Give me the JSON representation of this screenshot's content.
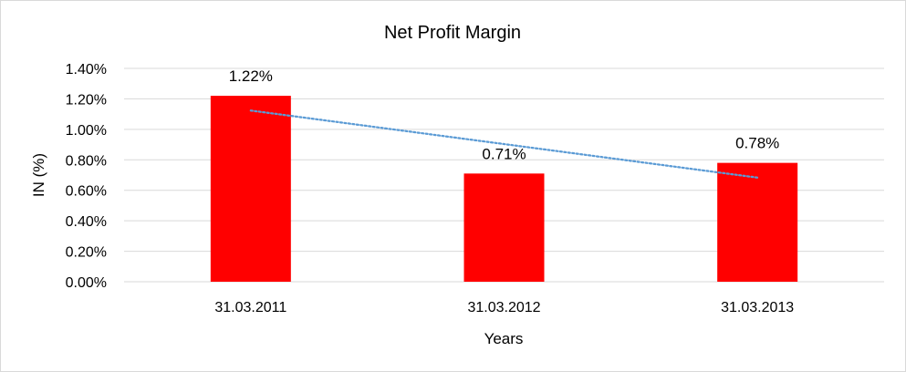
{
  "chart_data": {
    "type": "bar",
    "title": "Net Profit Margin",
    "xlabel": "Years",
    "ylabel": "IN (%)",
    "categories": [
      "31.03.2011",
      "31.03.2012",
      "31.03.2013"
    ],
    "values": [
      1.22,
      0.71,
      0.78
    ],
    "data_labels": [
      "1.22%",
      "0.71%",
      "0.78%"
    ],
    "ylim": [
      0,
      1.4
    ],
    "y_ticks": [
      0,
      0.2,
      0.4,
      0.6,
      0.8,
      1.0,
      1.2,
      1.4
    ],
    "y_tick_labels": [
      "0.00%",
      "0.20%",
      "0.40%",
      "0.60%",
      "0.80%",
      "1.00%",
      "1.20%",
      "1.40%"
    ],
    "bar_color": "#ff0000",
    "grid": true,
    "legend": "none",
    "trendline": {
      "type": "linear",
      "style": "dotted",
      "color": "#5b9bd5"
    }
  }
}
